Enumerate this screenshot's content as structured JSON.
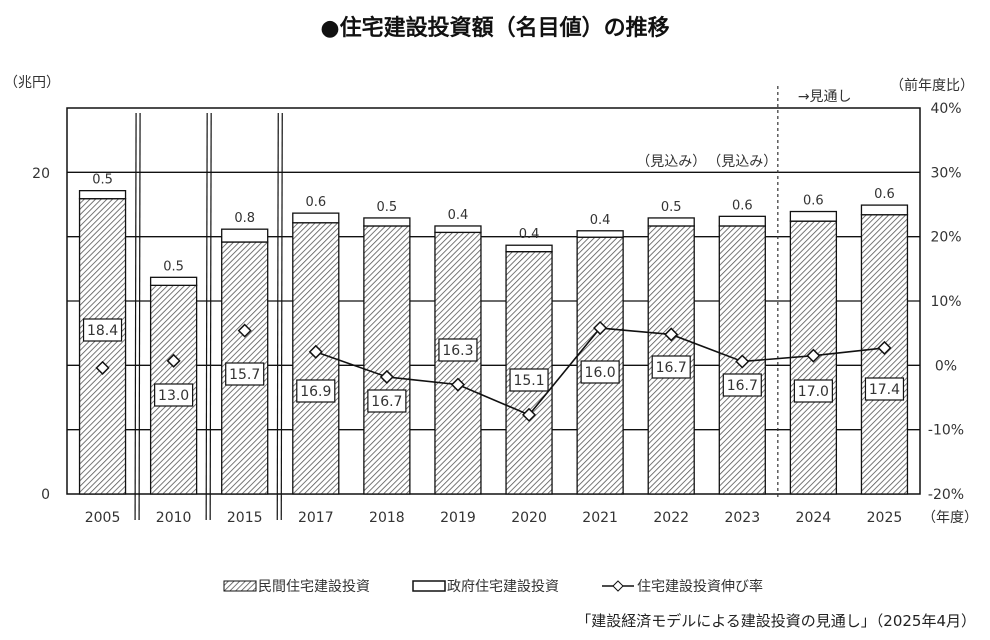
{
  "title": "●住宅建設投資額（名目値）の推移",
  "source": "「建設経済モデルによる建設投資の見通し」（2025年4月）",
  "chart_data": {
    "type": "bar",
    "stacked": true,
    "categories": [
      "2005",
      "2010",
      "2015",
      "2017",
      "2018",
      "2019",
      "2020",
      "2021",
      "2022",
      "2023",
      "2024",
      "2025"
    ],
    "series": [
      {
        "name": "民間住宅建設投資",
        "type": "bar",
        "axis": "left",
        "pattern": "diagonal-hatch",
        "values": [
          18.4,
          13.0,
          15.7,
          16.9,
          16.7,
          16.3,
          15.1,
          16.0,
          16.7,
          16.7,
          17.0,
          17.4
        ]
      },
      {
        "name": "政府住宅建設投資",
        "type": "bar",
        "axis": "left",
        "fill": "#ffffff",
        "values": [
          0.5,
          0.5,
          0.8,
          0.6,
          0.5,
          0.4,
          0.4,
          0.4,
          0.5,
          0.6,
          0.6,
          0.6
        ]
      },
      {
        "name": "住宅建設投資伸び率",
        "type": "line",
        "axis": "right",
        "marker": "diamond",
        "values": [
          -0.4,
          0.7,
          5.4,
          2.1,
          -1.8,
          -3.0,
          -7.7,
          5.8,
          4.8,
          0.6,
          1.5,
          2.7
        ],
        "connected_from": "2017"
      }
    ],
    "left_axis": {
      "label": "（兆円）",
      "ticks": [
        "0",
        "20"
      ],
      "range": [
        0,
        24
      ]
    },
    "right_axis": {
      "label": "（前年度比）",
      "ticks": [
        "-20%",
        "-10%",
        "0%",
        "10%",
        "20%",
        "30%",
        "40%"
      ],
      "range": [
        -20,
        40
      ]
    },
    "xlabel": "（年度）",
    "annotations": {
      "estimate": "（見込み）",
      "estimate_years": [
        "2022",
        "2023"
      ],
      "forecast": "→見通し"
    },
    "axis_breaks_after": [
      "2005",
      "2010",
      "2015"
    ],
    "grid": true,
    "legend_position": "bottom"
  }
}
